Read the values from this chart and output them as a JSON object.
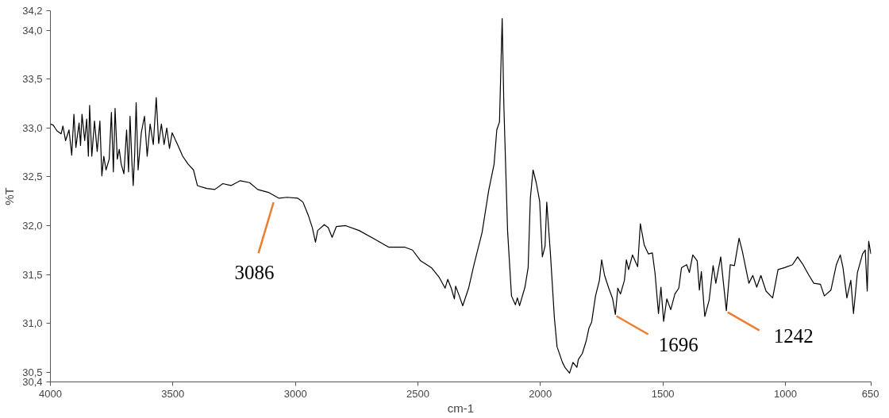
{
  "chart_data": {
    "type": "line",
    "xlabel": "cm-1",
    "ylabel": "%T",
    "xlim": [
      4000,
      650
    ],
    "ylim": [
      30.4,
      34.2
    ],
    "xticks": [
      4000,
      3500,
      3000,
      2500,
      2000,
      1500,
      1000,
      650
    ],
    "yticks": [
      {
        "value": 30.4,
        "label": "30,4"
      },
      {
        "value": 30.5,
        "label": "30,5"
      },
      {
        "value": 31.0,
        "label": "31,0"
      },
      {
        "value": 31.5,
        "label": "31,5"
      },
      {
        "value": 32.0,
        "label": "32,0"
      },
      {
        "value": 32.5,
        "label": "32,5"
      },
      {
        "value": 33.0,
        "label": "33,0"
      },
      {
        "value": 33.5,
        "label": "33,5"
      },
      {
        "value": 34.0,
        "label": "34,0"
      },
      {
        "value": 34.2,
        "label": "34,2"
      }
    ],
    "marker": "none",
    "line_style": "solid",
    "series": [
      {
        "color": "#000000",
        "x": [
          4000,
          3989,
          3973,
          3956,
          3949,
          3938,
          3924,
          3913,
          3904,
          3896,
          3883,
          3877,
          3871,
          3860,
          3852,
          3845,
          3840,
          3831,
          3820,
          3809,
          3798,
          3790,
          3782,
          3773,
          3760,
          3751,
          3743,
          3736,
          3727,
          3719,
          3711,
          3700,
          3689,
          3681,
          3675,
          3667,
          3662,
          3656,
          3650,
          3642,
          3629,
          3616,
          3605,
          3593,
          3580,
          3568,
          3558,
          3547,
          3536,
          3525,
          3514,
          3503,
          3481,
          3460,
          3438,
          3416,
          3400,
          3362,
          3329,
          3296,
          3263,
          3225,
          3187,
          3154,
          3110,
          3067,
          3034,
          2990,
          2969,
          2948,
          2931,
          2918,
          2909,
          2882,
          2866,
          2850,
          2833,
          2795,
          2740,
          2675,
          2620,
          2555,
          2522,
          2489,
          2445,
          2413,
          2389,
          2378,
          2364,
          2351,
          2346,
          2331,
          2317,
          2293,
          2271,
          2238,
          2211,
          2189,
          2178,
          2167,
          2156,
          2149,
          2134,
          2118,
          2102,
          2094,
          2085,
          2063,
          2050,
          2041,
          2030,
          2017,
          2003,
          1992,
          1981,
          1974,
          1959,
          1943,
          1932,
          1910,
          1900,
          1881,
          1867,
          1851,
          1845,
          1829,
          1813,
          1802,
          1791,
          1775,
          1759,
          1750,
          1738,
          1721,
          1705,
          1694,
          1684,
          1673,
          1657,
          1649,
          1640,
          1624,
          1603,
          1592,
          1576,
          1559,
          1543,
          1532,
          1518,
          1508,
          1497,
          1484,
          1468,
          1451,
          1435,
          1424,
          1403,
          1392,
          1378,
          1360,
          1351,
          1343,
          1329,
          1311,
          1295,
          1284,
          1264,
          1241,
          1225,
          1208,
          1189,
          1176,
          1149,
          1133,
          1117,
          1100,
          1079,
          1052,
          1030,
          1003,
          971,
          950,
          928,
          906,
          884,
          857,
          841,
          814,
          792,
          776,
          765,
          749,
          733,
          722,
          706,
          685,
          674,
          666,
          660,
          651
        ],
        "values": [
          33.04,
          33.03,
          32.97,
          32.94,
          33.02,
          32.87,
          32.98,
          32.72,
          33.14,
          32.8,
          33.05,
          32.82,
          33.14,
          32.87,
          33.09,
          32.71,
          33.23,
          32.71,
          33.07,
          32.76,
          33.07,
          32.51,
          32.71,
          32.57,
          32.68,
          33.16,
          32.55,
          33.2,
          32.68,
          32.78,
          32.63,
          32.53,
          32.98,
          32.55,
          33.12,
          32.63,
          32.41,
          32.73,
          33.26,
          32.57,
          32.95,
          33.12,
          32.71,
          33.04,
          32.83,
          33.31,
          32.84,
          33.04,
          32.83,
          33.0,
          32.79,
          32.95,
          32.83,
          32.71,
          32.63,
          32.57,
          32.41,
          32.38,
          32.37,
          32.43,
          32.41,
          32.46,
          32.44,
          32.37,
          32.34,
          32.28,
          32.29,
          32.28,
          32.24,
          32.11,
          31.98,
          31.83,
          31.95,
          32.01,
          31.98,
          31.88,
          31.99,
          32.0,
          31.95,
          31.86,
          31.78,
          31.78,
          31.75,
          31.64,
          31.57,
          31.47,
          31.36,
          31.45,
          31.36,
          31.25,
          31.38,
          31.28,
          31.18,
          31.36,
          31.6,
          31.93,
          32.36,
          32.63,
          32.98,
          33.06,
          34.12,
          33.22,
          31.95,
          31.28,
          31.19,
          31.26,
          31.18,
          31.37,
          31.57,
          32.28,
          32.57,
          32.44,
          32.25,
          31.68,
          31.79,
          32.24,
          31.71,
          31.06,
          30.76,
          30.6,
          30.55,
          30.49,
          30.6,
          30.55,
          30.63,
          30.69,
          30.82,
          30.95,
          31.01,
          31.28,
          31.44,
          31.65,
          31.49,
          31.36,
          31.25,
          31.09,
          31.36,
          31.3,
          31.44,
          31.65,
          31.55,
          31.7,
          31.58,
          32.02,
          31.8,
          31.71,
          31.72,
          31.51,
          31.1,
          31.37,
          31.02,
          31.25,
          31.14,
          31.3,
          31.36,
          31.57,
          31.6,
          31.52,
          31.7,
          31.64,
          31.34,
          31.53,
          31.07,
          31.24,
          31.59,
          31.41,
          31.68,
          31.13,
          31.6,
          31.59,
          31.87,
          31.74,
          31.41,
          31.49,
          31.37,
          31.49,
          31.33,
          31.26,
          31.55,
          31.57,
          31.6,
          31.68,
          31.6,
          31.5,
          31.41,
          31.4,
          31.28,
          31.34,
          31.6,
          31.7,
          31.57,
          31.26,
          31.44,
          31.1,
          31.52,
          31.71,
          31.75,
          31.33,
          31.84,
          31.71
        ]
      }
    ],
    "annotations": [
      {
        "text": "3086",
        "x": 3086,
        "y": 32.27
      },
      {
        "text": "1696",
        "x": 1696,
        "y": 31.09
      },
      {
        "text": "1242",
        "x": 1242,
        "y": 31.13
      }
    ]
  }
}
